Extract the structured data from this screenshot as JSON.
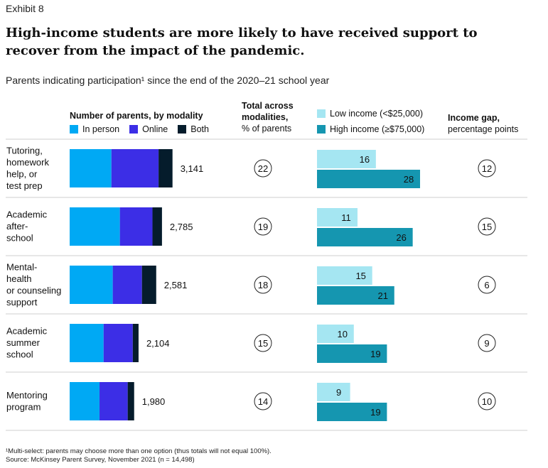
{
  "exhibit": "Exhibit 8",
  "title": "High-income students are more likely to have received support to recover from the impact of the pandemic.",
  "subtitle": "Parents indicating participation¹ since the end of the 2020–21 school year",
  "headers": {
    "modality": "Number of parents, by modality",
    "total_line1": "Total across",
    "total_line2": "modalities,",
    "total_line3": "% of parents",
    "gap_line1": "Income gap,",
    "gap_line2": "percentage points"
  },
  "legend_modality": [
    {
      "label": "In person",
      "color": "#00a9f4"
    },
    {
      "label": "Online",
      "color": "#3c2ee6"
    },
    {
      "label": "Both",
      "color": "#051c2c"
    }
  ],
  "legend_income": [
    {
      "label": "Low income (<$25,000)",
      "color": "#a5e6f2"
    },
    {
      "label": "High income (≥$75,000)",
      "color": "#1596b0"
    }
  ],
  "footnote_line1": "¹Multi-select: parents may choose more than one option (thus totals will not equal 100%).",
  "footnote_line2": "Source: McKinsey Parent Survey, November 2021 (n = 14,498)",
  "chart_data": {
    "type": "bar",
    "categories": [
      [
        "Tutoring,",
        "homework",
        "help, or",
        "test prep"
      ],
      [
        "Academic",
        "after-",
        "school"
      ],
      [
        "Mental-",
        "health",
        "or counseling",
        "support"
      ],
      [
        "Academic",
        "summer",
        "school"
      ],
      [
        "Mentoring",
        "program"
      ]
    ],
    "modality_series": [
      {
        "name": "In person",
        "values": [
          1230,
          1480,
          1270,
          1000,
          880
        ]
      },
      {
        "name": "Online",
        "values": [
          1390,
          960,
          860,
          860,
          830
        ]
      },
      {
        "name": "Both",
        "values": [
          410,
          280,
          420,
          170,
          190
        ]
      }
    ],
    "number_of_parents": [
      "3,141",
      "2,785",
      "2,581",
      "2,104",
      "1,980"
    ],
    "total_pct": [
      22,
      19,
      18,
      15,
      14
    ],
    "income_series": [
      {
        "name": "Low income (<$25,000)",
        "values": [
          16,
          11,
          15,
          10,
          9
        ]
      },
      {
        "name": "High income (≥$75,000)",
        "values": [
          28,
          26,
          21,
          19,
          19
        ]
      }
    ],
    "income_gap": [
      12,
      15,
      6,
      9,
      10
    ]
  }
}
